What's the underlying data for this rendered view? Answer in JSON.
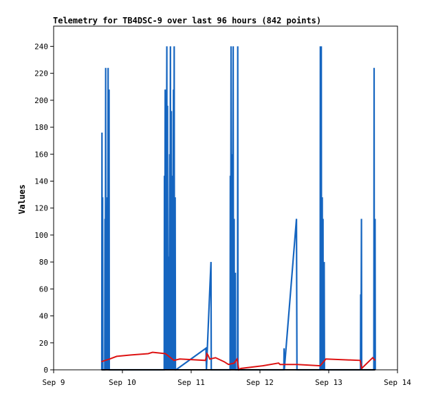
{
  "chart_data": {
    "type": "line",
    "title": "Telemetry for TB4DSC-9 over last 96 hours (842 points)",
    "xlabel": "",
    "ylabel": "Values",
    "x_axis_type": "date",
    "xlim": [
      "2024-09-09T00:00",
      "2024-09-14T00:00"
    ],
    "ylim": [
      0,
      255
    ],
    "x_ticks": [
      {
        "x": "2024-09-09T00:00",
        "label": "Sep 9"
      },
      {
        "x": "2024-09-10T00:00",
        "label": "Sep 10"
      },
      {
        "x": "2024-09-11T00:00",
        "label": "Sep 11"
      },
      {
        "x": "2024-09-12T00:00",
        "label": "Sep 12"
      },
      {
        "x": "2024-09-13T00:00",
        "label": "Sep 13"
      },
      {
        "x": "2024-09-14T00:00",
        "label": "Sep 14"
      }
    ],
    "y_ticks": [
      0,
      20,
      40,
      60,
      80,
      100,
      120,
      140,
      160,
      180,
      200,
      220,
      240
    ],
    "grid": false,
    "legend": "none",
    "series": [
      {
        "color": "#1565c0",
        "points": [
          [
            "2024-09-09T16:48",
            0
          ],
          [
            "2024-09-09T16:53",
            176
          ],
          [
            "2024-09-09T16:58",
            0
          ],
          [
            "2024-09-09T17:05",
            128
          ],
          [
            "2024-09-09T17:10",
            0
          ],
          [
            "2024-09-09T17:50",
            0
          ],
          [
            "2024-09-09T17:55",
            112
          ],
          [
            "2024-09-09T18:00",
            0
          ],
          [
            "2024-09-09T18:10",
            224
          ],
          [
            "2024-09-09T18:15",
            0
          ],
          [
            "2024-09-09T18:25",
            80
          ],
          [
            "2024-09-09T18:30",
            0
          ],
          [
            "2024-09-09T18:45",
            128
          ],
          [
            "2024-09-09T18:50",
            0
          ],
          [
            "2024-09-09T19:00",
            224
          ],
          [
            "2024-09-09T19:05",
            0
          ],
          [
            "2024-09-09T19:20",
            208
          ],
          [
            "2024-09-09T19:25",
            0
          ],
          [
            "2024-09-10T14:35",
            0
          ],
          [
            "2024-09-10T14:40",
            144
          ],
          [
            "2024-09-10T14:45",
            0
          ],
          [
            "2024-09-10T14:55",
            208
          ],
          [
            "2024-09-10T15:00",
            0
          ],
          [
            "2024-09-10T15:10",
            176
          ],
          [
            "2024-09-10T15:15",
            0
          ],
          [
            "2024-09-10T15:30",
            240
          ],
          [
            "2024-09-10T15:35",
            0
          ],
          [
            "2024-09-10T15:45",
            196
          ],
          [
            "2024-09-10T15:50",
            0
          ],
          [
            "2024-09-10T16:10",
            84
          ],
          [
            "2024-09-10T16:15",
            0
          ],
          [
            "2024-09-10T16:30",
            160
          ],
          [
            "2024-09-10T16:35",
            0
          ],
          [
            "2024-09-10T16:45",
            240
          ],
          [
            "2024-09-10T16:50",
            0
          ],
          [
            "2024-09-10T17:05",
            192
          ],
          [
            "2024-09-10T17:10",
            0
          ],
          [
            "2024-09-10T17:30",
            144
          ],
          [
            "2024-09-10T17:35",
            0
          ],
          [
            "2024-09-10T17:50",
            208
          ],
          [
            "2024-09-10T17:55",
            0
          ],
          [
            "2024-09-10T18:05",
            240
          ],
          [
            "2024-09-10T18:10",
            0
          ],
          [
            "2024-09-10T18:25",
            128
          ],
          [
            "2024-09-10T18:30",
            0
          ],
          [
            "2024-09-10T18:40",
            0
          ],
          [
            "2024-09-11T05:10",
            16
          ],
          [
            "2024-09-11T05:20",
            0
          ],
          [
            "2024-09-11T06:35",
            64
          ],
          [
            "2024-09-11T06:55",
            80
          ],
          [
            "2024-09-11T07:00",
            0
          ],
          [
            "2024-09-11T13:35",
            0
          ],
          [
            "2024-09-11T13:40",
            144
          ],
          [
            "2024-09-11T13:45",
            0
          ],
          [
            "2024-09-11T13:55",
            240
          ],
          [
            "2024-09-11T14:00",
            0
          ],
          [
            "2024-09-11T14:15",
            160
          ],
          [
            "2024-09-11T14:20",
            0
          ],
          [
            "2024-09-11T14:40",
            240
          ],
          [
            "2024-09-11T14:45",
            0
          ],
          [
            "2024-09-11T15:00",
            112
          ],
          [
            "2024-09-11T15:05",
            0
          ],
          [
            "2024-09-11T15:25",
            72
          ],
          [
            "2024-09-11T15:30",
            0
          ],
          [
            "2024-09-11T16:10",
            0
          ],
          [
            "2024-09-11T16:15",
            240
          ],
          [
            "2024-09-11T16:20",
            0
          ],
          [
            "2024-09-12T08:20",
            0
          ],
          [
            "2024-09-12T08:25",
            16
          ],
          [
            "2024-09-12T08:30",
            0
          ],
          [
            "2024-09-12T12:45",
            112
          ],
          [
            "2024-09-12T12:55",
            0
          ],
          [
            "2024-09-12T21:00",
            0
          ],
          [
            "2024-09-12T21:05",
            240
          ],
          [
            "2024-09-12T21:10",
            0
          ],
          [
            "2024-09-12T21:25",
            240
          ],
          [
            "2024-09-12T21:30",
            0
          ],
          [
            "2024-09-12T21:45",
            128
          ],
          [
            "2024-09-12T21:50",
            0
          ],
          [
            "2024-09-12T22:00",
            112
          ],
          [
            "2024-09-12T22:05",
            0
          ],
          [
            "2024-09-12T22:25",
            80
          ],
          [
            "2024-09-12T22:30",
            0
          ],
          [
            "2024-09-13T11:05",
            0
          ],
          [
            "2024-09-13T11:10",
            56
          ],
          [
            "2024-09-13T11:15",
            0
          ],
          [
            "2024-09-13T11:25",
            112
          ],
          [
            "2024-09-13T11:30",
            0
          ],
          [
            "2024-09-13T15:45",
            0
          ],
          [
            "2024-09-13T15:50",
            224
          ],
          [
            "2024-09-13T15:55",
            0
          ],
          [
            "2024-09-13T16:10",
            112
          ],
          [
            "2024-09-13T16:15",
            0
          ]
        ]
      },
      {
        "color": "#dd1111",
        "points": [
          [
            "2024-09-09T16:40",
            6
          ],
          [
            "2024-09-09T19:30",
            8
          ],
          [
            "2024-09-09T22:00",
            10
          ],
          [
            "2024-09-10T03:00",
            11
          ],
          [
            "2024-09-10T09:00",
            12
          ],
          [
            "2024-09-10T10:30",
            13
          ],
          [
            "2024-09-10T15:00",
            12
          ],
          [
            "2024-09-10T18:00",
            7
          ],
          [
            "2024-09-10T20:00",
            8
          ],
          [
            "2024-09-11T05:00",
            7
          ],
          [
            "2024-09-11T05:30",
            12
          ],
          [
            "2024-09-11T05:50",
            11
          ],
          [
            "2024-09-11T06:30",
            8
          ],
          [
            "2024-09-11T08:30",
            9
          ],
          [
            "2024-09-11T11:30",
            6
          ],
          [
            "2024-09-11T13:00",
            4
          ],
          [
            "2024-09-11T15:00",
            5
          ],
          [
            "2024-09-11T16:00",
            8
          ],
          [
            "2024-09-11T16:40",
            0
          ],
          [
            "2024-09-11T17:20",
            1
          ],
          [
            "2024-09-12T01:00",
            3
          ],
          [
            "2024-09-12T06:30",
            5
          ],
          [
            "2024-09-12T07:00",
            4
          ],
          [
            "2024-09-12T13:00",
            4
          ],
          [
            "2024-09-12T21:00",
            3
          ],
          [
            "2024-09-12T23:00",
            8
          ],
          [
            "2024-09-13T11:00",
            7
          ],
          [
            "2024-09-13T11:30",
            1
          ],
          [
            "2024-09-13T15:20",
            9
          ],
          [
            "2024-09-13T16:10",
            7
          ]
        ]
      },
      {
        "color": "#000000",
        "points": [
          [
            "2024-09-09T16:40",
            0
          ],
          [
            "2024-09-13T16:15",
            0
          ]
        ]
      }
    ]
  }
}
